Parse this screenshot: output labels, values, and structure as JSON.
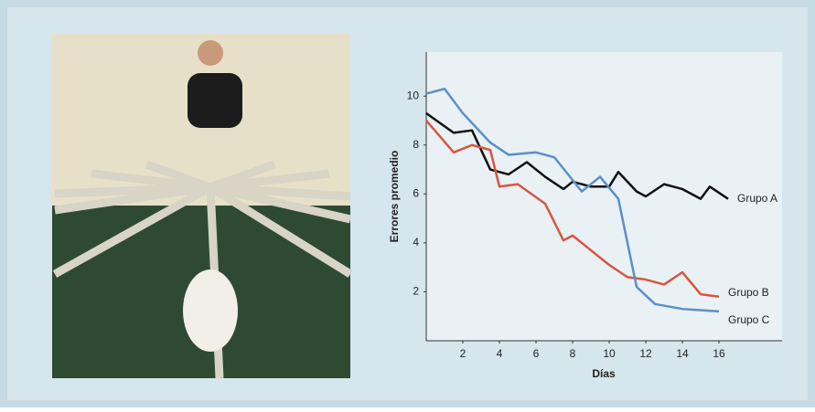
{
  "chart_data": {
    "type": "line",
    "xlabel": "Días",
    "ylabel": "Errores promedio",
    "xlim": [
      0,
      19.5
    ],
    "ylim": [
      0,
      11.8
    ],
    "xticks": [
      2,
      4,
      6,
      8,
      10,
      12,
      14,
      16
    ],
    "yticks": [
      2,
      4,
      6,
      8,
      10
    ],
    "series": [
      {
        "name": "Grupo A",
        "color": "#111111",
        "x": [
          0,
          1.5,
          2.5,
          3.5,
          4.5,
          5.5,
          6.5,
          7.5,
          8,
          9,
          10,
          10.5,
          11.5,
          12,
          13,
          14,
          15,
          15.5,
          16.5
        ],
        "values": [
          9.3,
          8.5,
          8.6,
          7.0,
          6.8,
          7.3,
          6.7,
          6.2,
          6.5,
          6.3,
          6.3,
          6.9,
          6.1,
          5.9,
          6.4,
          6.2,
          5.8,
          6.3,
          5.8
        ]
      },
      {
        "name": "Grupo B",
        "color": "#d9553f",
        "x": [
          0,
          1.5,
          2.5,
          3.5,
          4,
          5,
          6.5,
          7.5,
          8,
          9,
          10,
          11,
          12,
          13,
          14,
          15,
          16
        ],
        "values": [
          9.0,
          7.7,
          8.0,
          7.8,
          6.3,
          6.4,
          5.6,
          4.1,
          4.3,
          3.7,
          3.1,
          2.6,
          2.5,
          2.3,
          2.8,
          1.9,
          1.8
        ]
      },
      {
        "name": "Grupo C",
        "color": "#5b8fc9",
        "x": [
          0,
          1,
          2,
          3.5,
          4.5,
          6,
          7,
          8.5,
          9.5,
          10.5,
          11.5,
          12.5,
          14,
          16
        ],
        "values": [
          10.1,
          10.3,
          9.3,
          8.1,
          7.6,
          7.7,
          7.5,
          6.1,
          6.7,
          5.8,
          2.2,
          1.5,
          1.3,
          1.2
        ]
      }
    ]
  }
}
